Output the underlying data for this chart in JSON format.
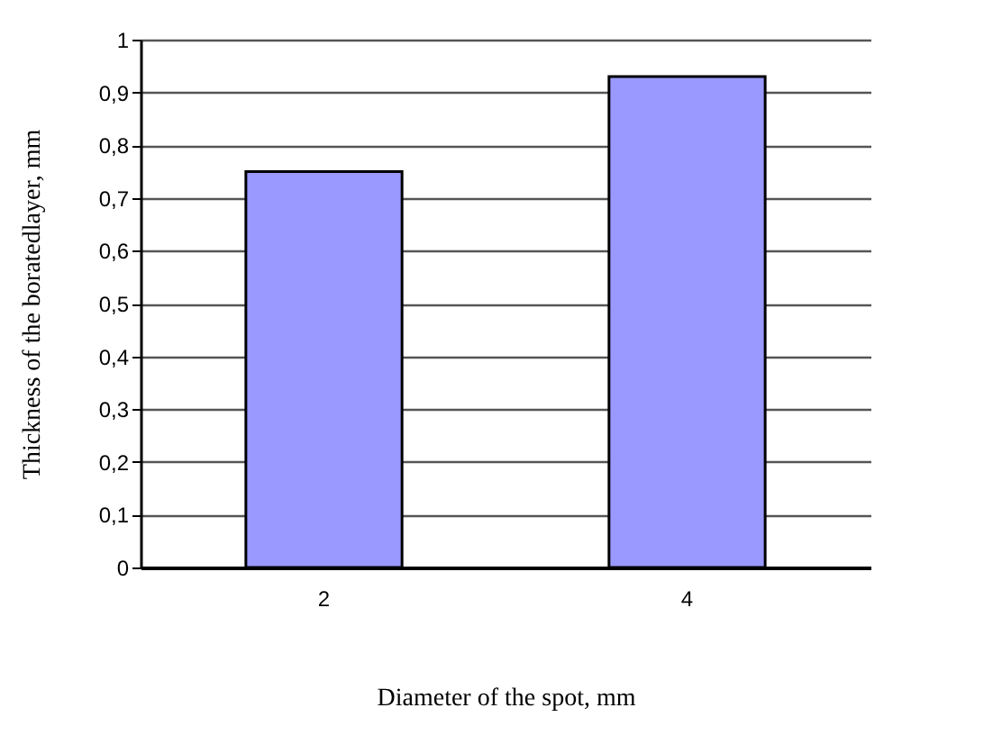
{
  "chart_data": {
    "type": "bar",
    "xlabel": "Diameter of the spot, mm",
    "ylabel": "Thickness of the boratedlayer, mm",
    "categories": [
      "2",
      "4"
    ],
    "values": [
      0.75,
      0.93
    ],
    "color": "#9999ff",
    "ylim": [
      0,
      1
    ],
    "yticks": [
      0,
      {
        "value": 0.1,
        "label": "0,1"
      },
      {
        "value": 0.2,
        "label": "0,2"
      },
      {
        "value": 0.3,
        "label": "0,3"
      },
      {
        "value": 0.4,
        "label": "0,4"
      },
      {
        "value": 0.5,
        "label": "0,5"
      },
      {
        "value": 0.6,
        "label": "0,6"
      },
      {
        "value": 0.7,
        "label": "0,7"
      },
      {
        "value": 0.8,
        "label": "0,8"
      },
      {
        "value": 0.9,
        "label": "0,9"
      },
      1
    ],
    "grid": "y"
  }
}
